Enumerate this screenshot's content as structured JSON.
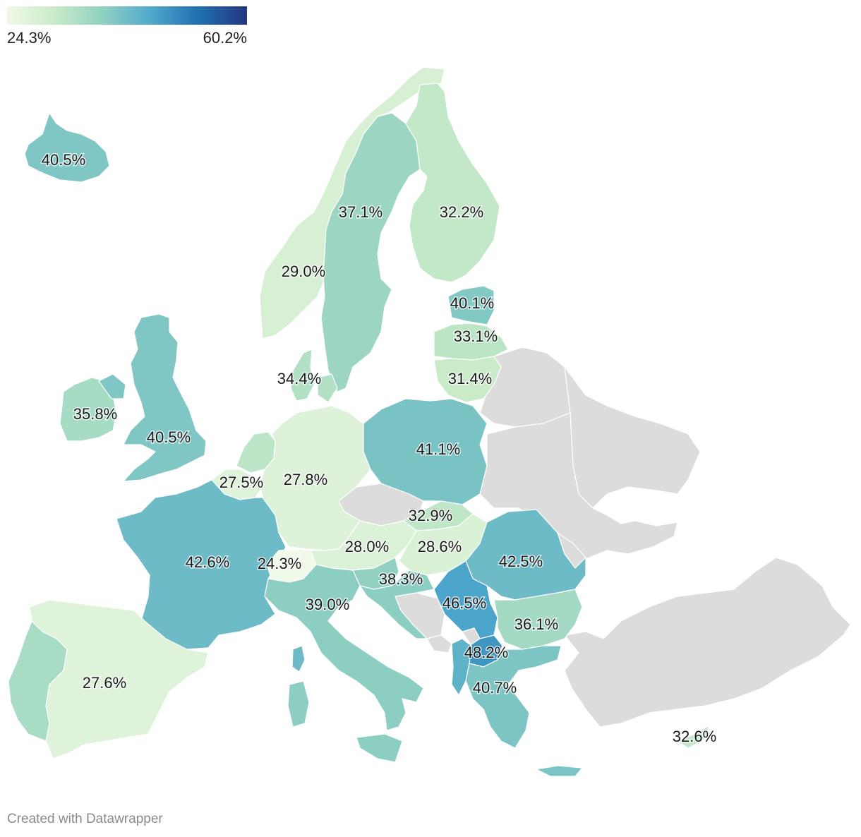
{
  "legend": {
    "min_label": "24.3%",
    "max_label": "60.2%",
    "min": 24.3,
    "max": 60.2,
    "colors": [
      "#f1f9e9",
      "#c9ebc8",
      "#8fd0c1",
      "#4fa9cb",
      "#1f6fb0",
      "#25367f"
    ]
  },
  "nodata_color": "#dcdcdc",
  "countries": [
    {
      "id": "iceland",
      "value": 40.5,
      "label": "40.5%"
    },
    {
      "id": "sweden",
      "value": 37.1,
      "label": "37.1%"
    },
    {
      "id": "finland",
      "value": 32.2,
      "label": "32.2%"
    },
    {
      "id": "norway",
      "value": 29.0,
      "label": "29.0%"
    },
    {
      "id": "estonia",
      "value": 40.1,
      "label": "40.1%"
    },
    {
      "id": "latvia",
      "value": 33.1,
      "label": "33.1%"
    },
    {
      "id": "lithuania",
      "value": 31.4,
      "label": "31.4%"
    },
    {
      "id": "denmark",
      "value": 34.4,
      "label": "34.4%"
    },
    {
      "id": "ireland",
      "value": 35.8,
      "label": "35.8%"
    },
    {
      "id": "united-kingdom",
      "value": 40.5,
      "label": "40.5%"
    },
    {
      "id": "netherlands",
      "value": 33.0,
      "label": ""
    },
    {
      "id": "belgium",
      "value": 27.5,
      "label": "27.5%"
    },
    {
      "id": "germany",
      "value": 27.8,
      "label": "27.8%"
    },
    {
      "id": "poland",
      "value": 41.1,
      "label": "41.1%"
    },
    {
      "id": "france",
      "value": 42.6,
      "label": "42.6%"
    },
    {
      "id": "switzerland",
      "value": 24.3,
      "label": "24.3%"
    },
    {
      "id": "slovakia",
      "value": 32.9,
      "label": "32.9%"
    },
    {
      "id": "austria",
      "value": 28.0,
      "label": "28.0%"
    },
    {
      "id": "hungary",
      "value": 28.6,
      "label": "28.6%"
    },
    {
      "id": "romania",
      "value": 42.5,
      "label": "42.5%"
    },
    {
      "id": "slovenia",
      "value": 38.3,
      "label": "38.3%"
    },
    {
      "id": "croatia",
      "value": 39.0,
      "label": ""
    },
    {
      "id": "italy",
      "value": 39.0,
      "label": "39.0%"
    },
    {
      "id": "serbia",
      "value": 46.5,
      "label": "46.5%"
    },
    {
      "id": "bulgaria",
      "value": 36.1,
      "label": "36.1%"
    },
    {
      "id": "north-macedonia",
      "value": 48.2,
      "label": "48.2%"
    },
    {
      "id": "albania",
      "value": 44.0,
      "label": ""
    },
    {
      "id": "greece",
      "value": 40.7,
      "label": "40.7%"
    },
    {
      "id": "spain",
      "value": 27.6,
      "label": "27.6%"
    },
    {
      "id": "portugal",
      "value": 35.5,
      "label": ""
    },
    {
      "id": "cyprus",
      "value": 32.6,
      "label": "32.6%"
    }
  ],
  "credit": "Created with Datawrapper"
}
